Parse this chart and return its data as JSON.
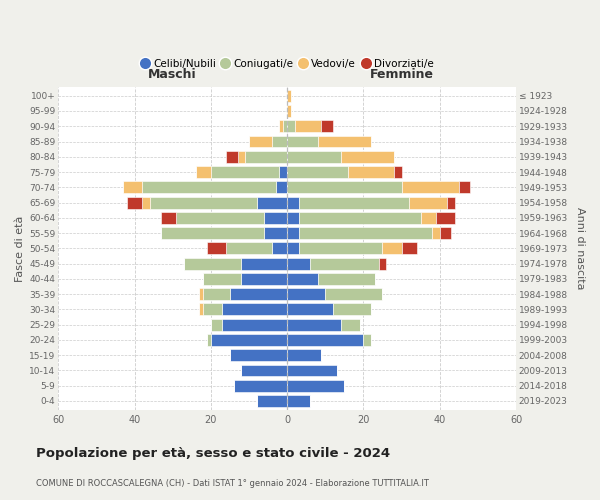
{
  "age_groups": [
    "0-4",
    "5-9",
    "10-14",
    "15-19",
    "20-24",
    "25-29",
    "30-34",
    "35-39",
    "40-44",
    "45-49",
    "50-54",
    "55-59",
    "60-64",
    "65-69",
    "70-74",
    "75-79",
    "80-84",
    "85-89",
    "90-94",
    "95-99",
    "100+"
  ],
  "birth_years": [
    "2019-2023",
    "2014-2018",
    "2009-2013",
    "2004-2008",
    "1999-2003",
    "1994-1998",
    "1989-1993",
    "1984-1988",
    "1979-1983",
    "1974-1978",
    "1969-1973",
    "1964-1968",
    "1959-1963",
    "1954-1958",
    "1949-1953",
    "1944-1948",
    "1939-1943",
    "1934-1938",
    "1929-1933",
    "1924-1928",
    "≤ 1923"
  ],
  "male_celibi": [
    8,
    14,
    12,
    15,
    20,
    17,
    17,
    15,
    12,
    12,
    4,
    6,
    6,
    8,
    3,
    2,
    0,
    0,
    0,
    0,
    0
  ],
  "male_coniugati": [
    0,
    0,
    0,
    0,
    1,
    3,
    5,
    7,
    10,
    15,
    12,
    27,
    23,
    28,
    35,
    18,
    11,
    4,
    1,
    0,
    0
  ],
  "male_vedovi": [
    0,
    0,
    0,
    0,
    0,
    0,
    1,
    1,
    0,
    0,
    0,
    0,
    0,
    2,
    5,
    4,
    2,
    6,
    1,
    0,
    0
  ],
  "male_divorziati": [
    0,
    0,
    0,
    0,
    0,
    0,
    0,
    0,
    0,
    0,
    5,
    0,
    4,
    4,
    0,
    0,
    3,
    0,
    0,
    0,
    0
  ],
  "fem_nubili": [
    6,
    15,
    13,
    9,
    20,
    14,
    12,
    10,
    8,
    6,
    3,
    3,
    3,
    3,
    0,
    0,
    0,
    0,
    0,
    0,
    0
  ],
  "fem_coniugate": [
    0,
    0,
    0,
    0,
    2,
    5,
    10,
    15,
    15,
    18,
    22,
    35,
    32,
    29,
    30,
    16,
    14,
    8,
    2,
    0,
    0
  ],
  "fem_vedove": [
    0,
    0,
    0,
    0,
    0,
    0,
    0,
    0,
    0,
    0,
    5,
    2,
    4,
    10,
    15,
    12,
    14,
    14,
    7,
    1,
    1
  ],
  "fem_divorziate": [
    0,
    0,
    0,
    0,
    0,
    0,
    0,
    0,
    0,
    2,
    4,
    3,
    5,
    2,
    3,
    2,
    0,
    0,
    3,
    0,
    0
  ],
  "col_celibi": "#4472c4",
  "col_coniugati": "#b5c99a",
  "col_vedovi": "#f4c06f",
  "col_divorziati": "#c0392b",
  "legend_labels": [
    "Celibi/Nubili",
    "Coniugati/e",
    "Vedovi/e",
    "Divorziati/e"
  ],
  "title": "Popolazione per età, sesso e stato civile - 2024",
  "subtitle": "COMUNE DI ROCCASCALEGNA (CH) - Dati ISTAT 1° gennaio 2024 - Elaborazione TUTTITALIA.IT",
  "maschi": "Maschi",
  "femmine": "Femmine",
  "ylabel_left": "Fasce di età",
  "ylabel_right": "Anni di nascita",
  "xlim": 60,
  "bg_color": "#f0f0eb",
  "plot_bg": "#ffffff"
}
